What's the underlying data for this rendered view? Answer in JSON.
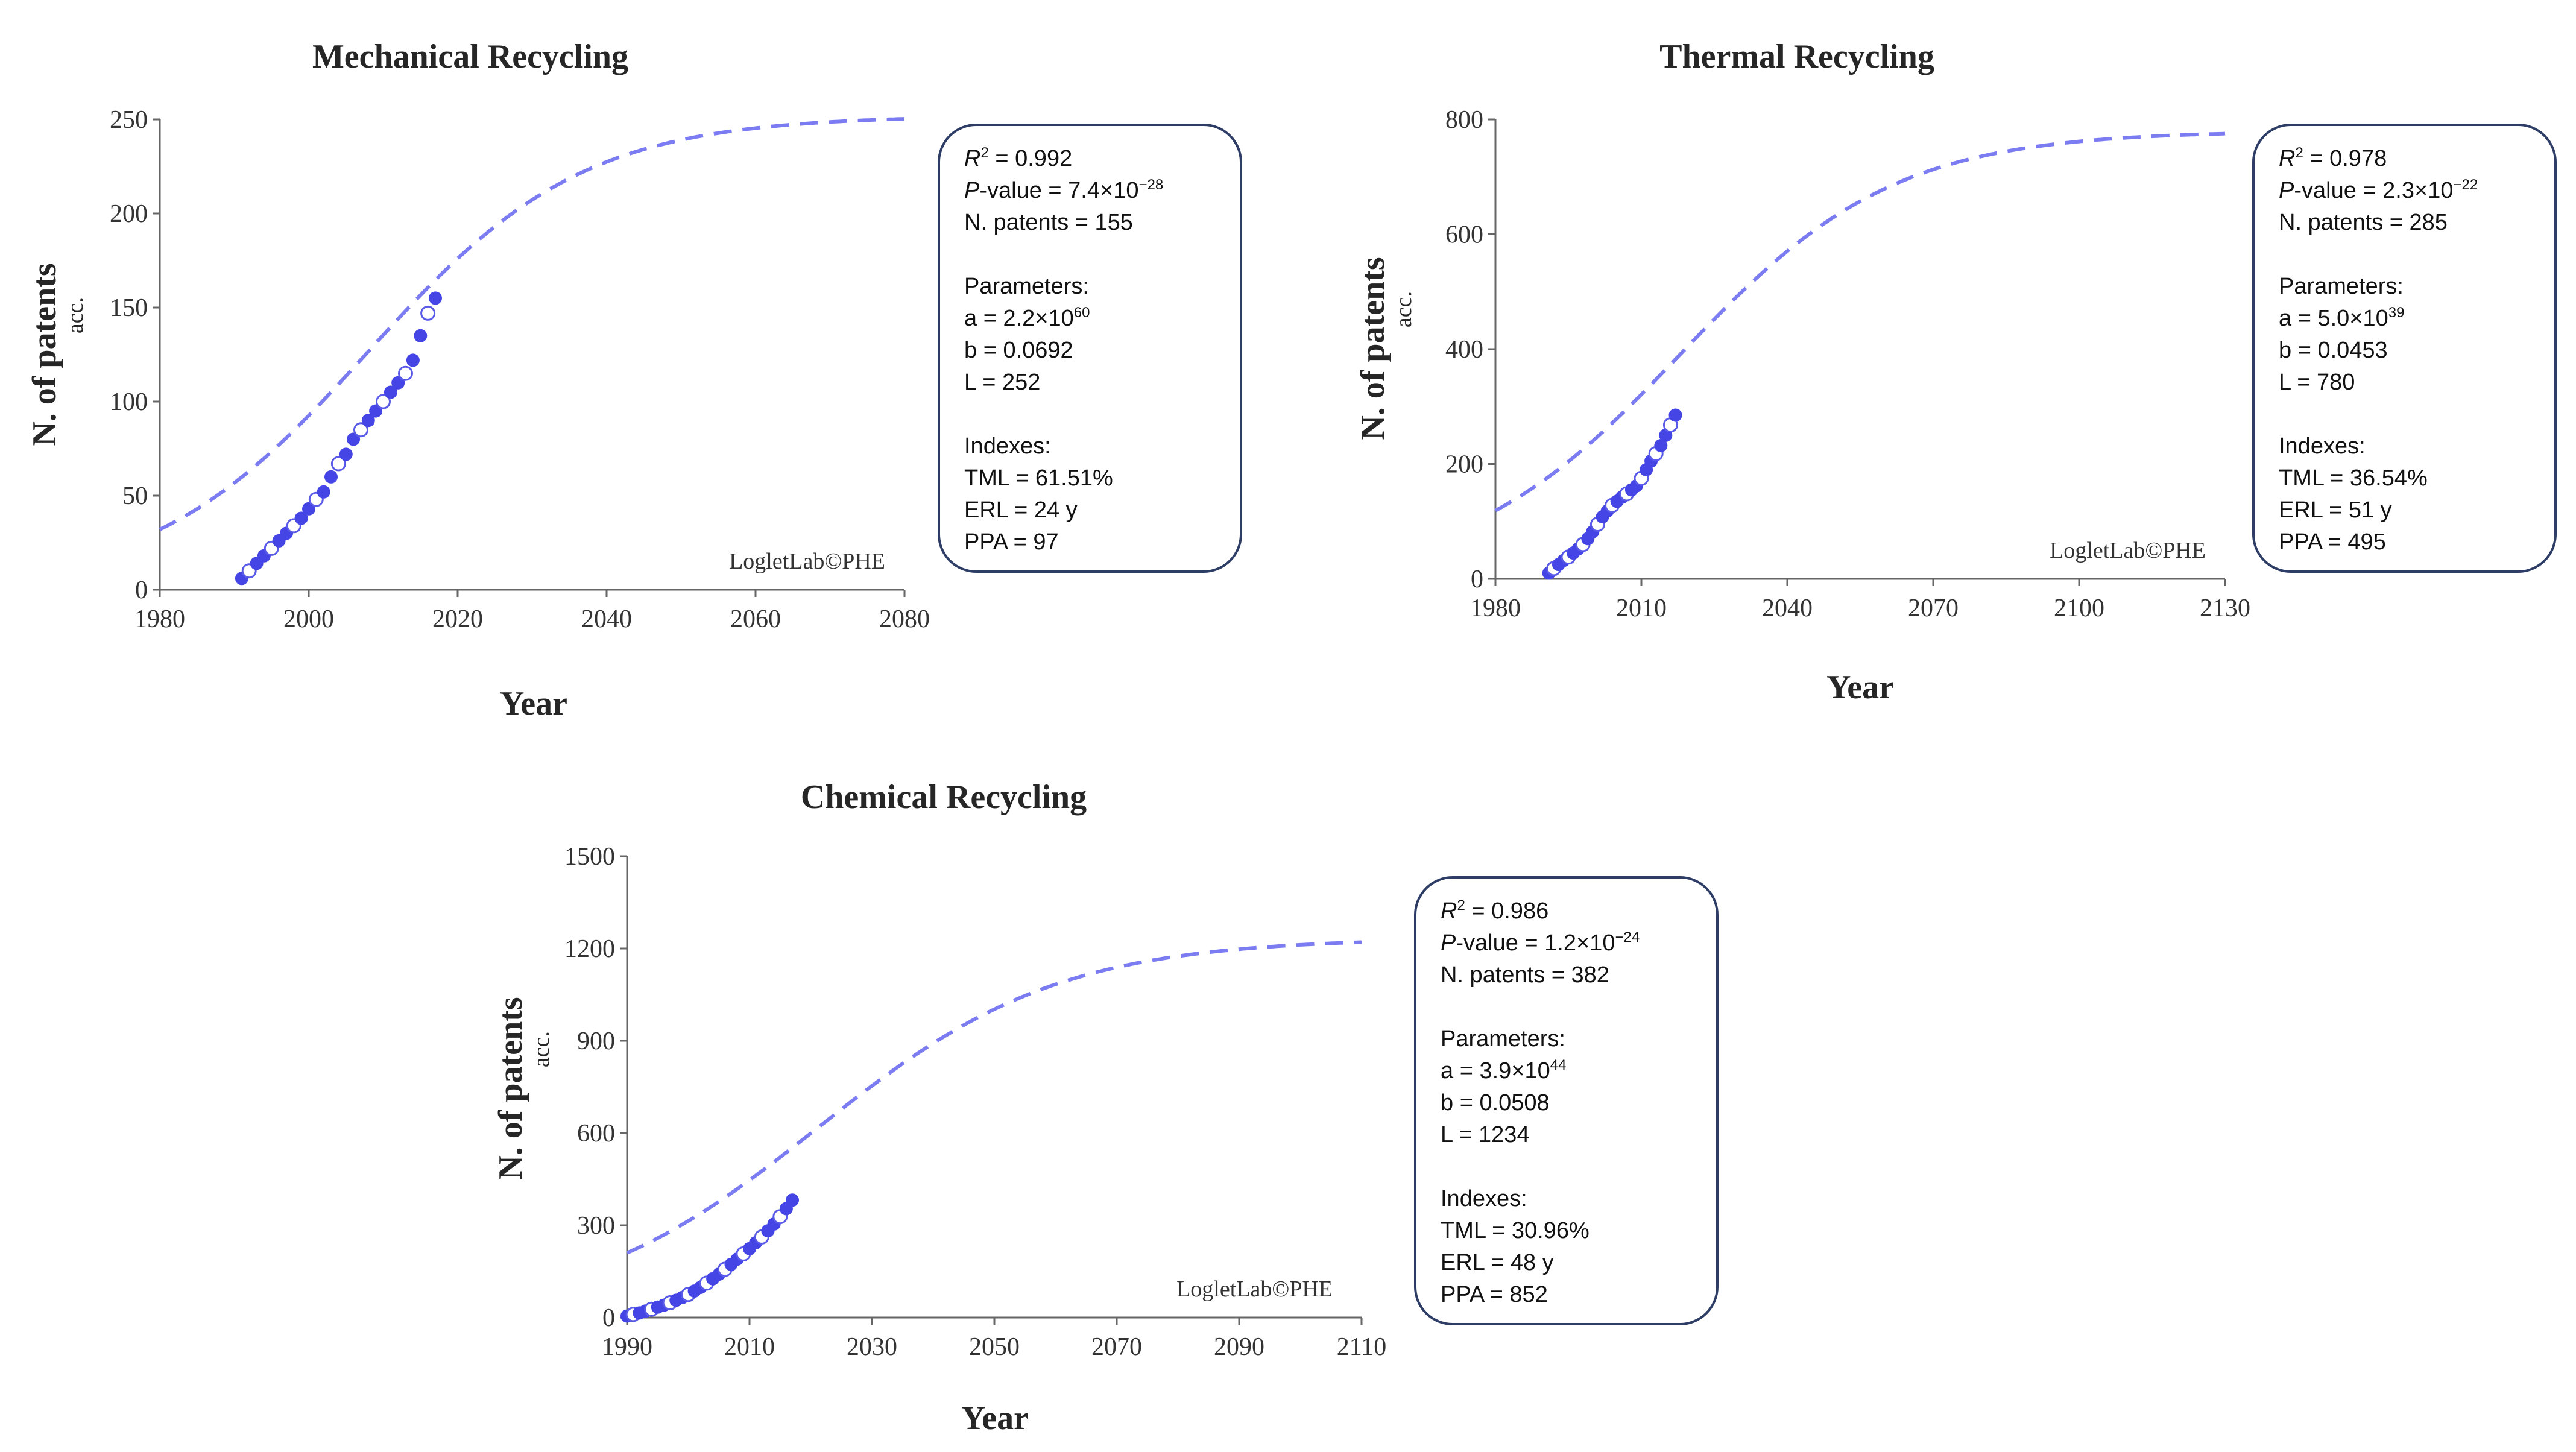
{
  "watermark": "LogletLab©PHE",
  "axis_titles": {
    "x": "Year",
    "y": "N. of patents",
    "y_sub": "acc."
  },
  "chart_data": [
    {
      "type": "scatter",
      "title": "Mechanical Recycling",
      "xlabel": "Year",
      "ylabel": "N. of patents acc.",
      "xlim": [
        1980,
        2080
      ],
      "ylim": [
        0,
        250
      ],
      "xticks": [
        1980,
        2000,
        2020,
        2040,
        2060,
        2080
      ],
      "yticks": [
        0,
        50,
        100,
        150,
        200,
        250
      ],
      "fit": {
        "model": "logistic",
        "a": 2.2e+60,
        "b": 0.0692,
        "L": 252,
        "style": "dashed"
      },
      "series": [
        {
          "name": "observed",
          "marker": "circle",
          "x": [
            1991,
            1992,
            1993,
            1994,
            1995,
            1996,
            1997,
            1998,
            1999,
            2000,
            2001,
            2002,
            2003,
            2004,
            2005,
            2006,
            2007,
            2008,
            2009,
            2010,
            2011,
            2012,
            2013,
            2014,
            2015,
            2016,
            2017
          ],
          "y": [
            6,
            10,
            14,
            18,
            22,
            26,
            30,
            34,
            38,
            43,
            48,
            52,
            60,
            67,
            72,
            80,
            85,
            90,
            95,
            100,
            105,
            110,
            115,
            122,
            135,
            147,
            155
          ]
        }
      ],
      "stats": {
        "r2_label": "R",
        "r2_value": " = 0.992",
        "p_label": "P",
        "p_text": "-value = 7.4×10",
        "p_exp": "−28",
        "n_patents": "N. patents = 155",
        "parameters_title": "Parameters:",
        "a_text": "a = 2.2×10",
        "a_exp": "60",
        "b": "b = 0.0692",
        "L": "L = 252",
        "indexes_title": "Indexes:",
        "tml": "TML = 61.51%",
        "erl": "ERL =  24 y",
        "ppa": "PPA = 97"
      }
    },
    {
      "type": "scatter",
      "title": "Thermal Recycling",
      "xlabel": "Year",
      "ylabel": "N. of patents acc.",
      "xlim": [
        1980,
        2130
      ],
      "ylim": [
        0,
        800
      ],
      "xticks": [
        1980,
        2010,
        2040,
        2070,
        2100,
        2130
      ],
      "yticks": [
        0,
        200,
        400,
        600,
        800
      ],
      "fit": {
        "model": "logistic",
        "a": 5e+39,
        "b": 0.0453,
        "L": 780,
        "style": "dashed"
      },
      "series": [
        {
          "name": "observed",
          "marker": "circle",
          "x": [
            1991,
            1992,
            1993,
            1994,
            1995,
            1996,
            1997,
            1998,
            1999,
            2000,
            2001,
            2002,
            2003,
            2004,
            2005,
            2006,
            2007,
            2008,
            2009,
            2010,
            2011,
            2012,
            2013,
            2014,
            2015,
            2016,
            2017
          ],
          "y": [
            10,
            18,
            25,
            32,
            38,
            45,
            52,
            60,
            70,
            82,
            95,
            108,
            118,
            128,
            135,
            142,
            148,
            155,
            162,
            175,
            190,
            205,
            218,
            232,
            250,
            268,
            285
          ]
        }
      ],
      "stats": {
        "r2_label": "R",
        "r2_value": " = 0.978",
        "p_label": "P",
        "p_text": "-value = 2.3×10",
        "p_exp": "−22",
        "n_patents": "N. patents = 285",
        "parameters_title": "Parameters:",
        "a_text": "a = 5.0×10",
        "a_exp": "39",
        "b": "b = 0.0453",
        "L": "L = 780",
        "indexes_title": "Indexes:",
        "tml": "TML = 36.54%",
        "erl": "ERL =  51 y",
        "ppa": "PPA = 495"
      }
    },
    {
      "type": "scatter",
      "title": "Chemical Recycling",
      "xlabel": "Year",
      "ylabel": "N. of patents acc.",
      "xlim": [
        1990,
        2110
      ],
      "ylim": [
        0,
        1500
      ],
      "xticks": [
        1990,
        2010,
        2030,
        2050,
        2070,
        2090,
        2110
      ],
      "yticks": [
        0,
        300,
        600,
        900,
        1200,
        1500
      ],
      "fit": {
        "model": "logistic",
        "a": 3.9e+44,
        "b": 0.0508,
        "L": 1234,
        "style": "dashed"
      },
      "series": [
        {
          "name": "observed",
          "marker": "circle",
          "x": [
            1990,
            1991,
            1992,
            1993,
            1994,
            1995,
            1996,
            1997,
            1998,
            1999,
            2000,
            2001,
            2002,
            2003,
            2004,
            2005,
            2006,
            2007,
            2008,
            2009,
            2010,
            2011,
            2012,
            2013,
            2014,
            2015,
            2016,
            2017
          ],
          "y": [
            5,
            10,
            15,
            21,
            27,
            34,
            40,
            48,
            56,
            65,
            75,
            86,
            98,
            112,
            126,
            141,
            157,
            173,
            190,
            207,
            224,
            243,
            262,
            282,
            304,
            328,
            354,
            382
          ]
        }
      ],
      "stats": {
        "r2_label": "R",
        "r2_value": " = 0.986",
        "p_label": "P",
        "p_text": "-value = 1.2×10",
        "p_exp": "−24",
        "n_patents": "N. patents = 382",
        "parameters_title": "Parameters:",
        "a_text": "a = 3.9×10",
        "a_exp": "44",
        "b": "b = 0.0508",
        "L": "L = 1234",
        "indexes_title": "Indexes:",
        "tml": "TML = 30.96%",
        "erl": "ERL =  48 y",
        "ppa": "PPA = 852"
      }
    }
  ]
}
